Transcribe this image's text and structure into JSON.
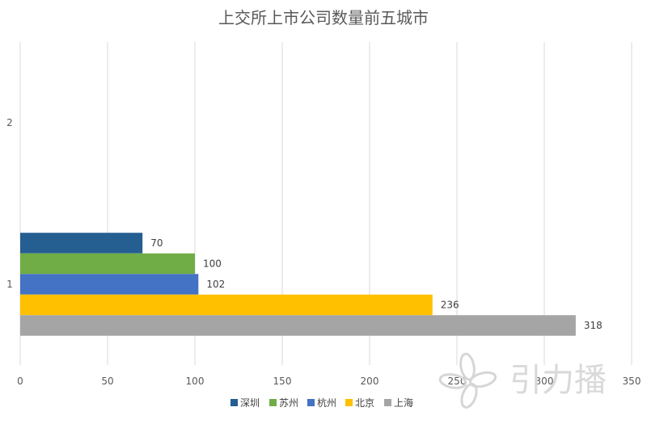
{
  "chart_data": {
    "type": "bar",
    "orientation": "horizontal",
    "title": "上交所上市公司数量前五城市",
    "categories": [
      "1",
      "2"
    ],
    "series": [
      {
        "name": "深圳",
        "color": "#255E91",
        "values": [
          70,
          null
        ]
      },
      {
        "name": "苏州",
        "color": "#70AD47",
        "values": [
          100,
          null
        ]
      },
      {
        "name": "杭州",
        "color": "#4472C4",
        "values": [
          102,
          null
        ]
      },
      {
        "name": "北京",
        "color": "#FFC000",
        "values": [
          236,
          null
        ]
      },
      {
        "name": "上海",
        "color": "#A5A5A5",
        "values": [
          318,
          null
        ]
      }
    ],
    "xlim": [
      0,
      350
    ],
    "x_ticks": [
      0,
      50,
      100,
      150,
      200,
      250,
      300,
      350
    ],
    "grid": true,
    "legend_position": "bottom",
    "data_labels": true
  },
  "watermark": {
    "text": "引力播",
    "icon": "flower-logo-icon",
    "color": "#d9d9d9"
  }
}
